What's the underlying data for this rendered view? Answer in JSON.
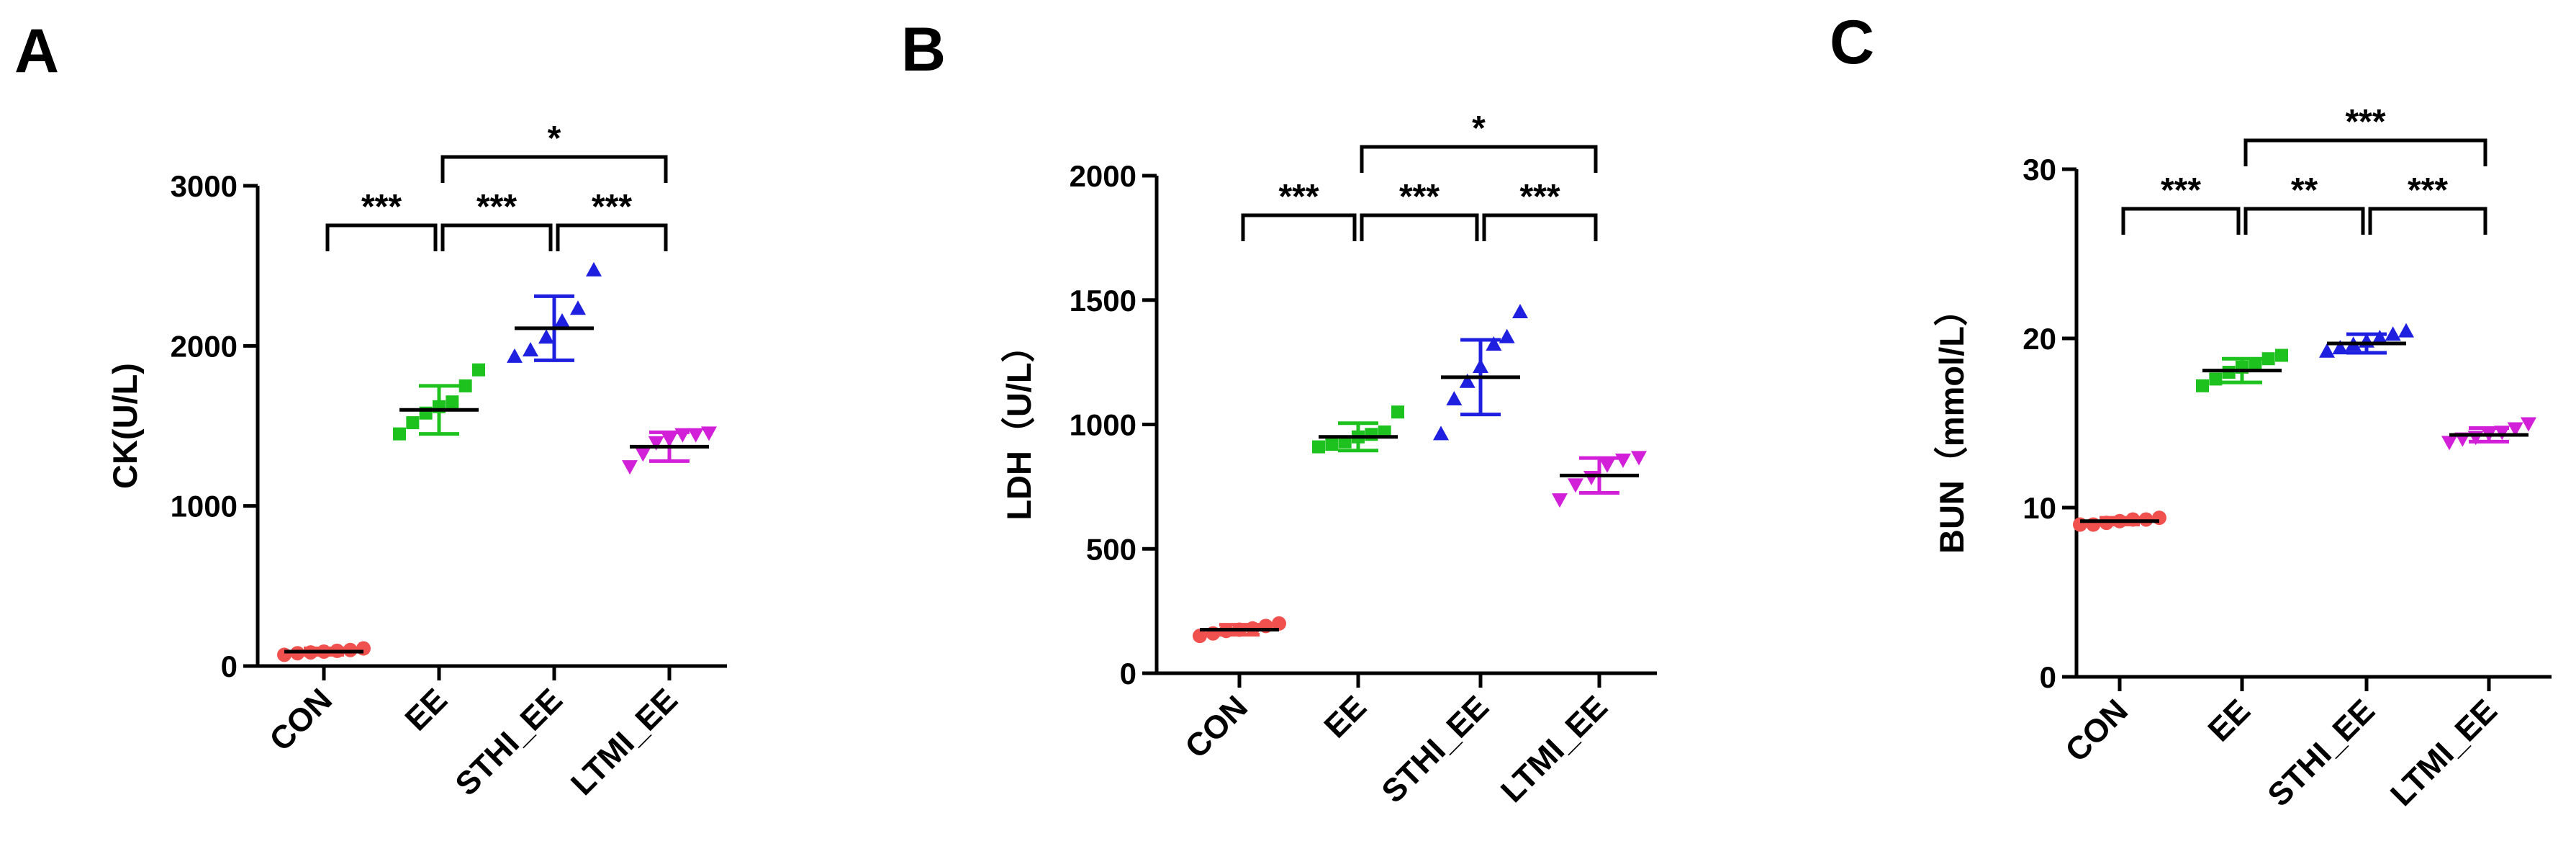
{
  "chart_data": [
    {
      "panel": "A",
      "type": "scatter",
      "ylabel": "CK(U/L)",
      "ylim": [
        0,
        3000
      ],
      "yticks": [
        "0",
        "1000",
        "2000",
        "3000"
      ],
      "categories": [
        "CON",
        "EE",
        "STHI_EE",
        "LTMI_EE"
      ],
      "series": [
        {
          "name": "CON",
          "color": "#f0514e",
          "marker": "circle",
          "mean": 90,
          "sd": 20,
          "points": [
            70,
            80,
            85,
            90,
            95,
            100,
            110
          ]
        },
        {
          "name": "EE",
          "color": "#1ec21e",
          "marker": "square",
          "mean": 1600,
          "sd": 150,
          "points": [
            1450,
            1520,
            1580,
            1620,
            1650,
            1750,
            1850
          ]
        },
        {
          "name": "STHI_EE",
          "color": "#1f1fe0",
          "marker": "triangle-up",
          "mean": 2110,
          "sd": 200,
          "points": [
            1930,
            1970,
            2050,
            2150,
            2230,
            2470
          ]
        },
        {
          "name": "LTMI_EE",
          "color": "#d21fd8",
          "marker": "triangle-down",
          "mean": 1370,
          "sd": 90,
          "points": [
            1250,
            1330,
            1400,
            1420,
            1450,
            1450,
            1460
          ]
        }
      ],
      "comparisons": [
        {
          "from": 0,
          "to": 1,
          "label": "***"
        },
        {
          "from": 1,
          "to": 2,
          "label": "***"
        },
        {
          "from": 2,
          "to": 3,
          "label": "***"
        },
        {
          "from": 1,
          "to": 3,
          "label": "*"
        }
      ]
    },
    {
      "panel": "B",
      "type": "scatter",
      "ylabel": "LDH（U/L）",
      "ylim": [
        0,
        2000
      ],
      "yticks": [
        "0",
        "500",
        "1000",
        "1500",
        "2000"
      ],
      "categories": [
        "CON",
        "EE",
        "STHI_EE",
        "LTMI_EE"
      ],
      "series": [
        {
          "name": "CON",
          "color": "#f0514e",
          "marker": "circle",
          "mean": 175,
          "sd": 20,
          "points": [
            150,
            160,
            170,
            175,
            180,
            190,
            200
          ]
        },
        {
          "name": "EE",
          "color": "#1ec21e",
          "marker": "square",
          "mean": 950,
          "sd": 55,
          "points": [
            910,
            920,
            930,
            950,
            960,
            970,
            1050
          ]
        },
        {
          "name": "STHI_EE",
          "color": "#1f1fe0",
          "marker": "triangle-up",
          "mean": 1190,
          "sd": 150,
          "points": [
            960,
            1100,
            1170,
            1230,
            1320,
            1350,
            1450
          ]
        },
        {
          "name": "LTMI_EE",
          "color": "#d21fd8",
          "marker": "triangle-down",
          "mean": 795,
          "sd": 70,
          "points": [
            700,
            760,
            790,
            840,
            860,
            870
          ]
        }
      ],
      "comparisons": [
        {
          "from": 0,
          "to": 1,
          "label": "***"
        },
        {
          "from": 1,
          "to": 2,
          "label": "***"
        },
        {
          "from": 2,
          "to": 3,
          "label": "***"
        },
        {
          "from": 1,
          "to": 3,
          "label": "*"
        }
      ]
    },
    {
      "panel": "C",
      "type": "scatter",
      "ylabel": "BUN（mmol/L）",
      "ylim": [
        0,
        30
      ],
      "yticks": [
        "0",
        "10",
        "20",
        "30"
      ],
      "categories": [
        "CON",
        "EE",
        "STHI_EE",
        "LTMI_EE"
      ],
      "series": [
        {
          "name": "CON",
          "color": "#f0514e",
          "marker": "circle",
          "mean": 9.2,
          "sd": 0.2,
          "points": [
            9.0,
            9.0,
            9.1,
            9.2,
            9.3,
            9.3,
            9.4
          ]
        },
        {
          "name": "EE",
          "color": "#1ec21e",
          "marker": "square",
          "mean": 18.1,
          "sd": 0.7,
          "points": [
            17.2,
            17.6,
            18.0,
            18.3,
            18.5,
            18.8,
            19.0
          ]
        },
        {
          "name": "STHI_EE",
          "color": "#1f1fe0",
          "marker": "triangle-up",
          "mean": 19.7,
          "sd": 0.55,
          "points": [
            19.2,
            19.4,
            19.6,
            19.8,
            20.0,
            20.2,
            20.4
          ]
        },
        {
          "name": "LTMI_EE",
          "color": "#d21fd8",
          "marker": "triangle-down",
          "mean": 14.3,
          "sd": 0.4,
          "points": [
            13.9,
            14.1,
            14.2,
            14.4,
            14.5,
            14.7,
            15.0
          ]
        }
      ],
      "comparisons": [
        {
          "from": 0,
          "to": 1,
          "label": "***"
        },
        {
          "from": 1,
          "to": 2,
          "label": "**"
        },
        {
          "from": 2,
          "to": 3,
          "label": "***"
        },
        {
          "from": 1,
          "to": 3,
          "label": "***"
        }
      ]
    }
  ]
}
